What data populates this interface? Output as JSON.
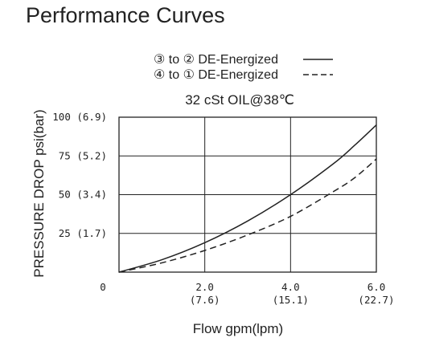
{
  "page": {
    "heading": "Performance Curves"
  },
  "chart_data": {
    "type": "line",
    "subtitle": "32 cSt OIL@38℃",
    "xlabel": "Flow gpm(lpm)",
    "ylabel": "PRESSURE DROP psi(bar)",
    "xlim": [
      0,
      6
    ],
    "ylim": [
      0,
      100
    ],
    "grid": true,
    "legend_position": "top-center",
    "x_ticks": [
      {
        "value": 2,
        "label": "2.0",
        "sublabel": "(7.6)"
      },
      {
        "value": 4,
        "label": "4.0",
        "sublabel": "(15.1)"
      },
      {
        "value": 6,
        "label": "6.0",
        "sublabel": "(22.7)"
      }
    ],
    "x_origin_label": "0",
    "y_ticks": [
      {
        "value": 25,
        "label": "25 (1.7)"
      },
      {
        "value": 50,
        "label": "50 (3.4)"
      },
      {
        "value": 75,
        "label": "75 (5.2)"
      },
      {
        "value": 100,
        "label": "100 (6.9)"
      }
    ],
    "series": [
      {
        "name": "③ to ② DE-Energized",
        "line_style": "solid",
        "color": "#222222",
        "points": [
          [
            0,
            0
          ],
          [
            1,
            8
          ],
          [
            2,
            19
          ],
          [
            3,
            33
          ],
          [
            4,
            50
          ],
          [
            5,
            70
          ],
          [
            5.5,
            82
          ],
          [
            6,
            95
          ]
        ]
      },
      {
        "name": "④ to ① DE-Energized",
        "line_style": "dashed",
        "color": "#222222",
        "points": [
          [
            0,
            0
          ],
          [
            1,
            6
          ],
          [
            2,
            14
          ],
          [
            3,
            24
          ],
          [
            4,
            36
          ],
          [
            5,
            52
          ],
          [
            5.5,
            61
          ],
          [
            6,
            73
          ]
        ]
      }
    ]
  }
}
